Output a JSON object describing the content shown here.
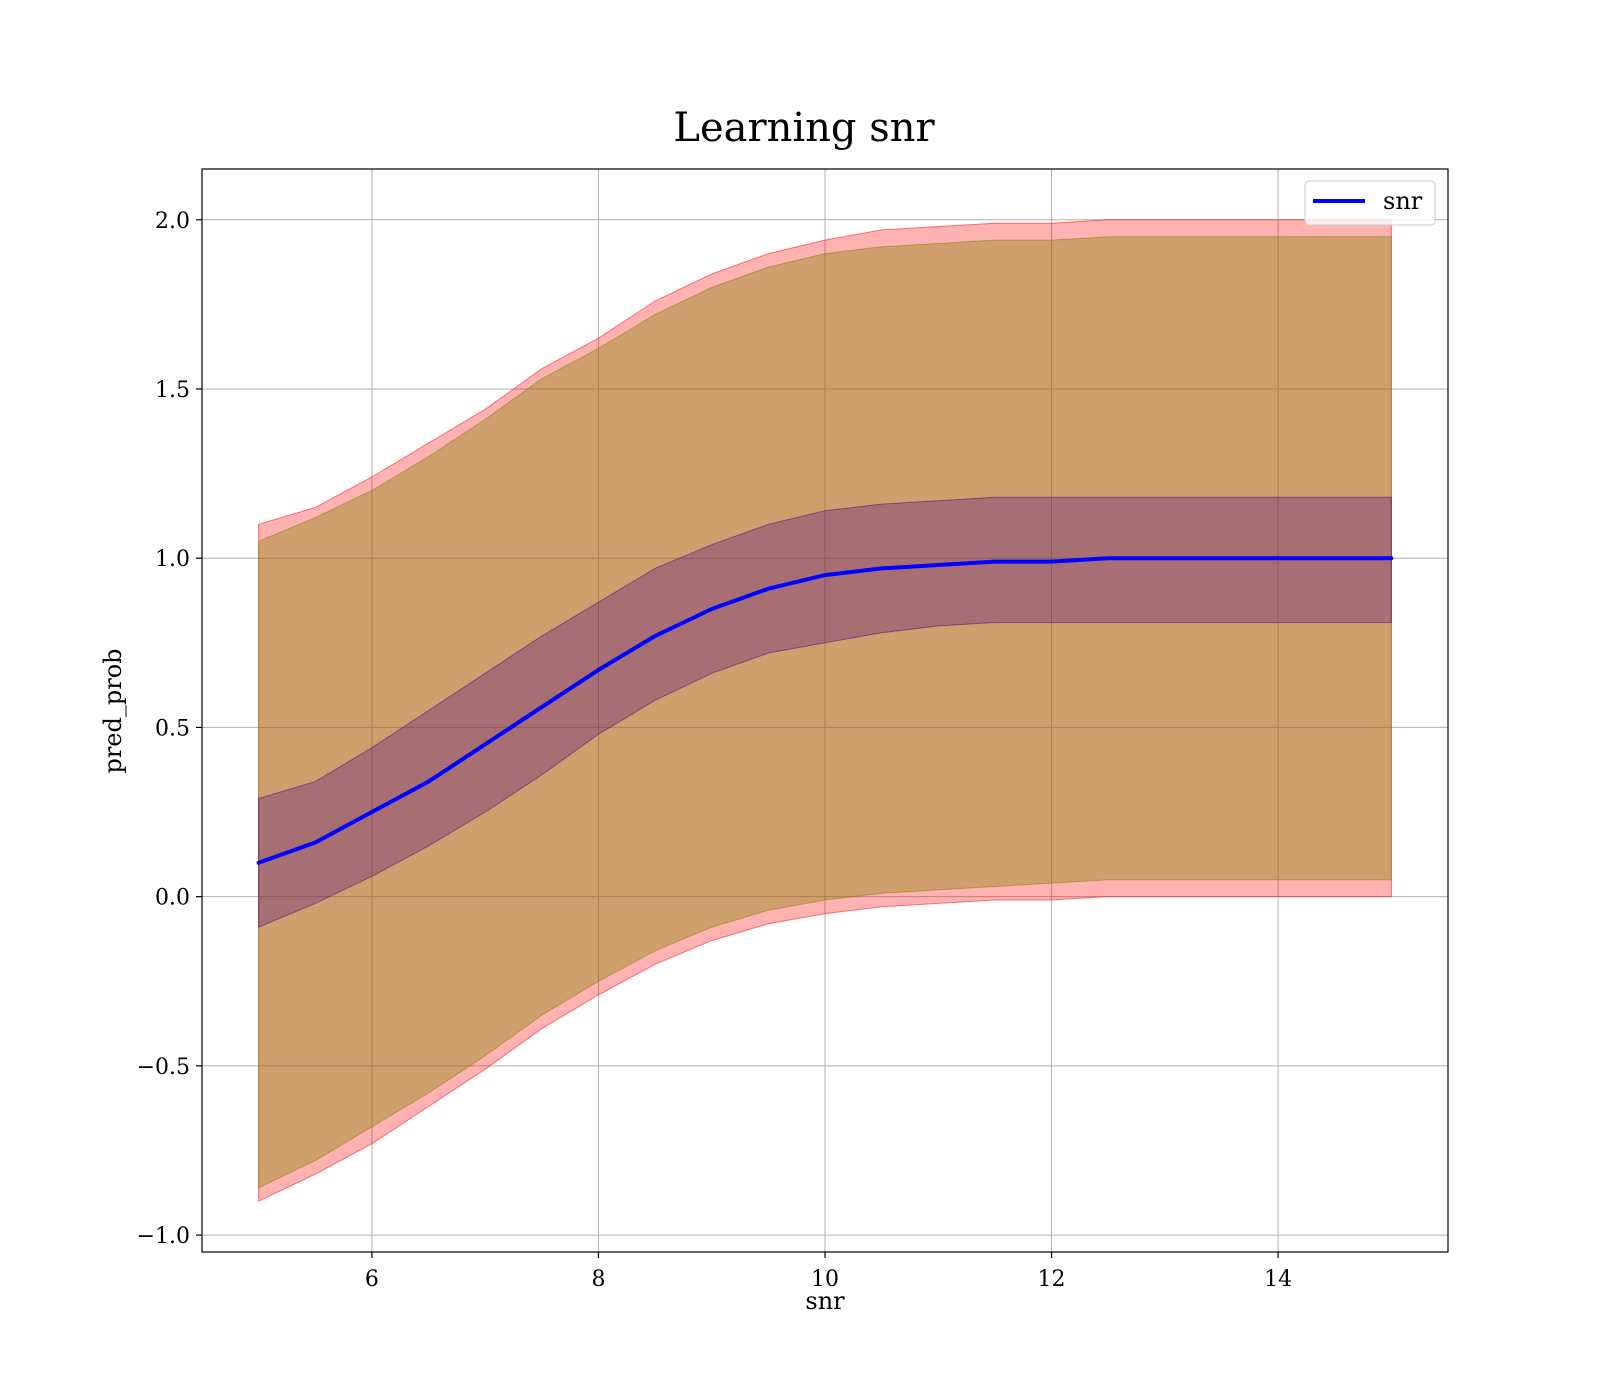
{
  "chart_data": {
    "type": "line",
    "title": "Learning snr",
    "xlabel": "snr",
    "ylabel": "pred_prob",
    "xlim": [
      4.5,
      15.5
    ],
    "ylim": [
      -1.05,
      2.15
    ],
    "grid": true,
    "legend_position": "top-right",
    "x_ticks": [
      6,
      8,
      10,
      12,
      14
    ],
    "x_tick_labels": [
      "6",
      "8",
      "10",
      "12",
      "14"
    ],
    "y_ticks": [
      -1.0,
      -0.5,
      0.0,
      0.5,
      1.0,
      1.5,
      2.0
    ],
    "y_tick_labels": [
      "−1.0",
      "−0.5",
      "0.0",
      "0.5",
      "1.0",
      "1.5",
      "2.0"
    ],
    "x": [
      5.0,
      5.5,
      6.0,
      6.5,
      7.0,
      7.5,
      8.0,
      8.5,
      9.0,
      9.5,
      10.0,
      10.5,
      11.0,
      11.5,
      12.0,
      12.5,
      13.0,
      13.5,
      14.0,
      14.5,
      15.0
    ],
    "series": [
      {
        "name": "snr",
        "color": "#0000ff",
        "values": [
          0.1,
          0.16,
          0.25,
          0.34,
          0.45,
          0.56,
          0.67,
          0.77,
          0.85,
          0.91,
          0.95,
          0.97,
          0.98,
          0.99,
          0.99,
          1.0,
          1.0,
          1.0,
          1.0,
          1.0,
          1.0
        ]
      }
    ],
    "bands": [
      {
        "color": "#ff0000",
        "opacity": 0.3,
        "lower": [
          -0.9,
          -0.82,
          -0.73,
          -0.62,
          -0.51,
          -0.39,
          -0.29,
          -0.2,
          -0.13,
          -0.08,
          -0.05,
          -0.03,
          -0.02,
          -0.01,
          -0.01,
          0.0,
          0.0,
          0.0,
          0.0,
          0.0,
          0.0
        ],
        "upper": [
          1.1,
          1.15,
          1.24,
          1.34,
          1.44,
          1.56,
          1.65,
          1.76,
          1.84,
          1.9,
          1.94,
          1.97,
          1.98,
          1.99,
          1.99,
          2.0,
          2.0,
          2.0,
          2.0,
          2.0,
          2.0
        ]
      },
      {
        "color": "#808000",
        "opacity": 0.38,
        "lower": [
          -0.86,
          -0.78,
          -0.68,
          -0.58,
          -0.47,
          -0.35,
          -0.25,
          -0.16,
          -0.09,
          -0.04,
          -0.01,
          0.01,
          0.02,
          0.03,
          0.04,
          0.05,
          0.05,
          0.05,
          0.05,
          0.05,
          0.05
        ],
        "upper": [
          1.05,
          1.12,
          1.2,
          1.3,
          1.41,
          1.53,
          1.62,
          1.72,
          1.8,
          1.86,
          1.9,
          1.92,
          1.93,
          1.94,
          1.94,
          1.95,
          1.95,
          1.95,
          1.95,
          1.95,
          1.95
        ]
      },
      {
        "color": "#4b0082",
        "opacity": 0.3,
        "lower": [
          -0.09,
          -0.02,
          0.06,
          0.15,
          0.25,
          0.36,
          0.48,
          0.58,
          0.66,
          0.72,
          0.75,
          0.78,
          0.8,
          0.81,
          0.81,
          0.81,
          0.81,
          0.81,
          0.81,
          0.81,
          0.81
        ],
        "upper": [
          0.29,
          0.34,
          0.44,
          0.55,
          0.66,
          0.77,
          0.87,
          0.97,
          1.04,
          1.1,
          1.14,
          1.16,
          1.17,
          1.18,
          1.18,
          1.18,
          1.18,
          1.18,
          1.18,
          1.18,
          1.18
        ]
      }
    ]
  }
}
